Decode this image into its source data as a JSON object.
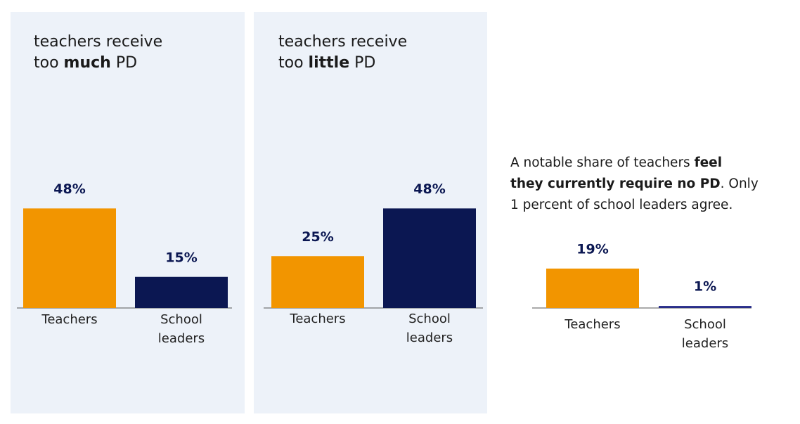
{
  "chart_data": [
    {
      "type": "bar",
      "title": [
        {
          "text": "teachers receive\ntoo "
        },
        {
          "text": "much",
          "bold": true
        },
        {
          "text": " PD"
        }
      ],
      "categories": [
        "Teachers",
        "School leaders"
      ],
      "values": [
        48,
        15
      ],
      "value_labels": [
        "48%",
        "15%"
      ],
      "colors": [
        "#f29500",
        "#0b1752"
      ]
    },
    {
      "type": "bar",
      "title": [
        {
          "text": "teachers receive\ntoo "
        },
        {
          "text": "little",
          "bold": true
        },
        {
          "text": " PD"
        }
      ],
      "categories": [
        "Teachers",
        "School leaders"
      ],
      "values": [
        25,
        48
      ],
      "value_labels": [
        "25%",
        "48%"
      ],
      "colors": [
        "#f29500",
        "#0b1752"
      ]
    },
    {
      "type": "bar",
      "title": [
        {
          "text": "A notable share of teachers "
        },
        {
          "text": "feel\nthey currently require no PD",
          "bold": true
        },
        {
          "text": ". Only\n1 percent of school leaders agree."
        }
      ],
      "categories": [
        "Teachers",
        "School leaders"
      ],
      "values": [
        19,
        1
      ],
      "value_labels": [
        "19%",
        "1%"
      ],
      "colors": [
        "#f29500",
        "#2a2f8a"
      ]
    }
  ]
}
